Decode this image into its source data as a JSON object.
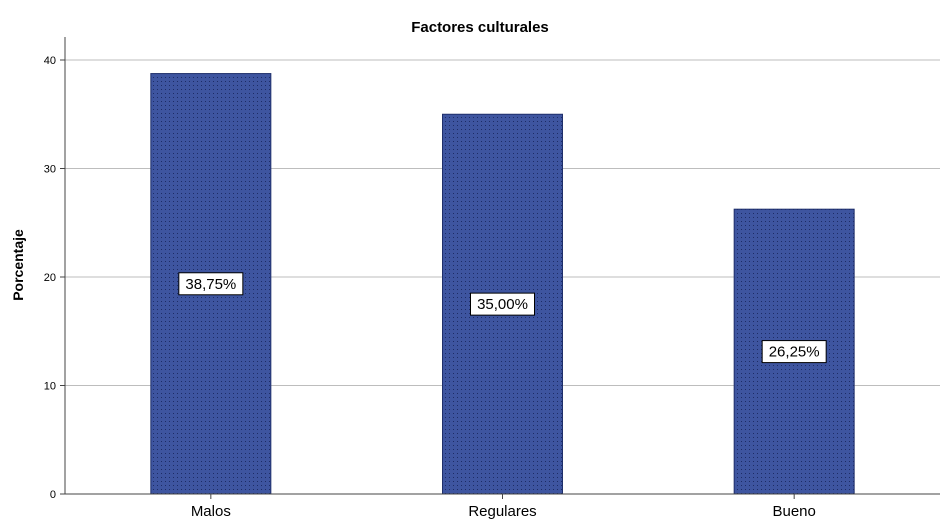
{
  "chart_data": {
    "type": "bar",
    "title": "Factores culturales",
    "xlabel": "",
    "ylabel": "Porcentaje",
    "categories": [
      "Malos",
      "Regulares",
      "Bueno"
    ],
    "values": [
      38.75,
      35.0,
      26.25
    ],
    "data_labels": [
      "38,75%",
      "35,00%",
      "26,25%"
    ],
    "ylim": [
      0,
      40
    ],
    "yticks": [
      "0",
      "10",
      "20",
      "30",
      "40"
    ],
    "grid": "horizontal",
    "bar_color": "#3e55a0",
    "bar_pattern": "dotted"
  }
}
